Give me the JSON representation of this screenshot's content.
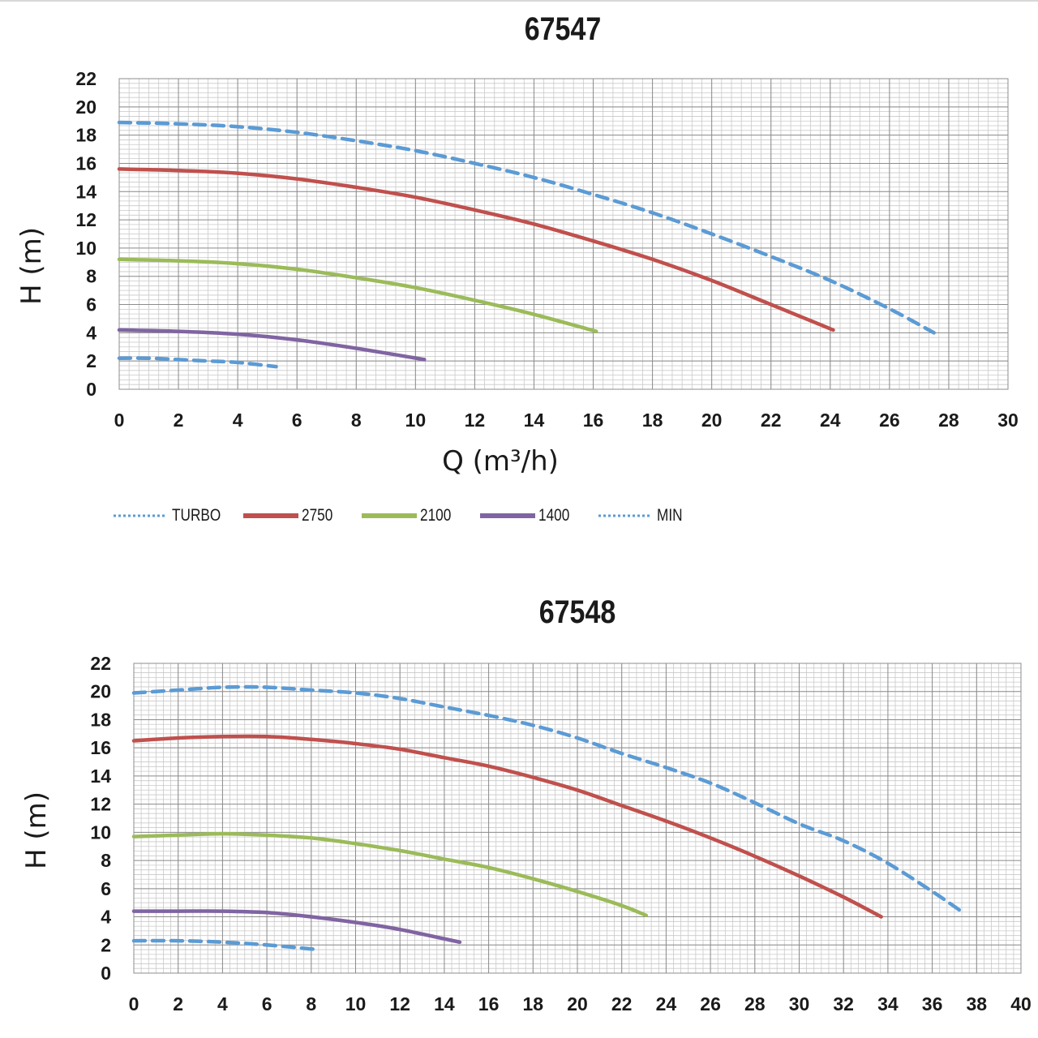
{
  "chart_data": [
    {
      "type": "line",
      "title": "67547",
      "xlabel": "Q (m³/h)",
      "ylabel": "H (m)",
      "xlim": [
        0,
        30
      ],
      "ylim": [
        0,
        22
      ],
      "xticks": [
        0,
        2,
        4,
        6,
        8,
        10,
        12,
        14,
        16,
        18,
        20,
        22,
        24,
        26,
        28,
        30
      ],
      "yticks": [
        0,
        2,
        4,
        6,
        8,
        10,
        12,
        14,
        16,
        18,
        20,
        22
      ],
      "grid": true,
      "series": [
        {
          "name": "TURBO",
          "color": "#5b9bd5",
          "style": "dashed",
          "x": [
            0,
            2,
            4,
            6,
            8,
            10,
            12,
            14,
            16,
            18,
            20,
            22,
            24,
            26,
            27.5
          ],
          "y": [
            18.9,
            18.8,
            18.6,
            18.2,
            17.6,
            16.9,
            16.0,
            15.0,
            13.8,
            12.5,
            11.0,
            9.4,
            7.7,
            5.7,
            4.0
          ]
        },
        {
          "name": "2750",
          "color": "#c0504d",
          "style": "solid",
          "x": [
            0,
            2,
            4,
            6,
            8,
            10,
            12,
            14,
            16,
            18,
            20,
            22,
            24.1
          ],
          "y": [
            15.6,
            15.5,
            15.3,
            14.9,
            14.3,
            13.6,
            12.7,
            11.7,
            10.5,
            9.2,
            7.7,
            6.0,
            4.2
          ]
        },
        {
          "name": "2100",
          "color": "#9bbb59",
          "style": "solid",
          "x": [
            0,
            2,
            4,
            6,
            8,
            10,
            12,
            14,
            16.1
          ],
          "y": [
            9.2,
            9.1,
            8.9,
            8.5,
            7.9,
            7.2,
            6.3,
            5.3,
            4.1
          ]
        },
        {
          "name": "1400",
          "color": "#8064a2",
          "style": "solid",
          "x": [
            0,
            2,
            4,
            6,
            8,
            10.3
          ],
          "y": [
            4.2,
            4.1,
            3.9,
            3.5,
            2.9,
            2.1
          ]
        },
        {
          "name": "MIN",
          "color": "#5b9bd5",
          "style": "dashed",
          "x": [
            0,
            1,
            2,
            3,
            4,
            5.3
          ],
          "y": [
            2.2,
            2.2,
            2.1,
            2.0,
            1.9,
            1.6
          ]
        }
      ],
      "legend": {
        "placement": "bottom-left",
        "entries": [
          "TURBO",
          "2750",
          "2100",
          "1400",
          "MIN"
        ]
      }
    },
    {
      "type": "line",
      "title": "67548",
      "xlabel": "",
      "ylabel": "H (m)",
      "xlim": [
        0,
        40
      ],
      "ylim": [
        0,
        22
      ],
      "xticks": [
        0,
        2,
        4,
        6,
        8,
        10,
        12,
        14,
        16,
        18,
        20,
        22,
        24,
        26,
        28,
        30,
        32,
        34,
        36,
        38,
        40
      ],
      "yticks": [
        0,
        2,
        4,
        6,
        8,
        10,
        12,
        14,
        16,
        18,
        20,
        22
      ],
      "grid": true,
      "series": [
        {
          "name": "TURBO",
          "color": "#5b9bd5",
          "style": "dashed",
          "x": [
            0,
            2,
            4,
            6,
            8,
            10,
            12,
            14,
            16,
            18,
            20,
            22,
            24,
            26,
            28,
            30,
            32,
            34,
            36,
            37.3
          ],
          "y": [
            19.9,
            20.1,
            20.3,
            20.3,
            20.1,
            19.9,
            19.5,
            18.9,
            18.3,
            17.6,
            16.7,
            15.6,
            14.6,
            13.5,
            12.1,
            10.6,
            9.4,
            7.8,
            5.8,
            4.4
          ]
        },
        {
          "name": "2750",
          "color": "#c0504d",
          "style": "solid",
          "x": [
            0,
            2,
            4,
            6,
            8,
            10,
            12,
            14,
            16,
            18,
            20,
            22,
            24,
            26,
            28,
            30,
            32,
            33.7
          ],
          "y": [
            16.5,
            16.7,
            16.8,
            16.8,
            16.6,
            16.3,
            15.9,
            15.3,
            14.7,
            13.9,
            13.0,
            11.9,
            10.8,
            9.6,
            8.3,
            6.9,
            5.4,
            4.0
          ]
        },
        {
          "name": "2100",
          "color": "#9bbb59",
          "style": "solid",
          "x": [
            0,
            2,
            4,
            6,
            8,
            10,
            12,
            14,
            16,
            18,
            20,
            22,
            23.1
          ],
          "y": [
            9.7,
            9.8,
            9.9,
            9.8,
            9.6,
            9.2,
            8.7,
            8.1,
            7.5,
            6.7,
            5.8,
            4.8,
            4.1
          ]
        },
        {
          "name": "1400",
          "color": "#8064a2",
          "style": "solid",
          "x": [
            0,
            2,
            4,
            6,
            8,
            10,
            12,
            14.7
          ],
          "y": [
            4.4,
            4.4,
            4.4,
            4.3,
            4.0,
            3.6,
            3.1,
            2.2
          ]
        },
        {
          "name": "MIN",
          "color": "#5b9bd5",
          "style": "dashed",
          "x": [
            0,
            2,
            4,
            6,
            8.1
          ],
          "y": [
            2.3,
            2.3,
            2.2,
            2.0,
            1.7
          ]
        }
      ]
    }
  ]
}
